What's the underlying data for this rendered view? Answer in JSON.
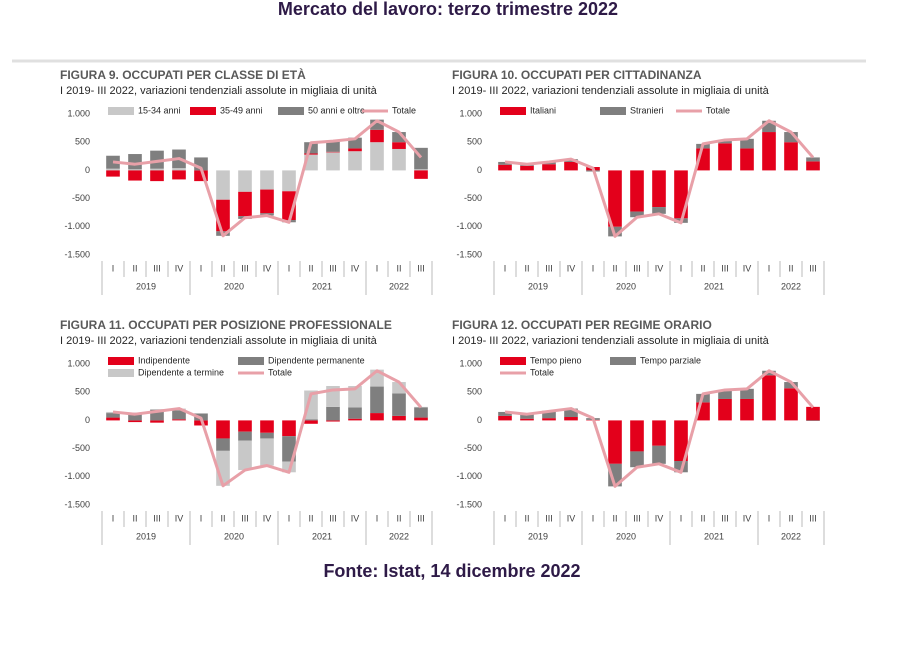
{
  "header": {
    "title": "Mercato del lavoro: terzo trimestre 2022"
  },
  "footer": {
    "source": "Fonte: Istat, 14 dicembre 2022"
  },
  "chart_data": [
    {
      "type": "bar",
      "stacked": true,
      "title": "FIGURA 9. OCCUPATI PER CLASSE DI ETÀ",
      "subtitle": "I 2019- III 2022, variazioni tendenziali assolute in migliaia di unità",
      "categories": [
        "I",
        "II",
        "III",
        "IV",
        "I",
        "II",
        "III",
        "IV",
        "I",
        "II",
        "III",
        "IV",
        "I",
        "II",
        "III"
      ],
      "years": [
        "2019",
        "2020",
        "2021",
        "2022"
      ],
      "ylim": [
        -1500,
        1000
      ],
      "yticks": [
        {
          "value": 1000,
          "label": "1.000"
        },
        500,
        0,
        -500,
        {
          "value": -1000,
          "label": "-1.000"
        },
        {
          "value": -1500,
          "label": "-1.500"
        }
      ],
      "series": [
        {
          "name": "15-34 anni",
          "color": "#c8c8c8",
          "values": [
            30,
            20,
            30,
            40,
            0,
            -520,
            -380,
            -340,
            -370,
            280,
            320,
            340,
            500,
            380,
            20
          ]
        },
        {
          "name": "35-49 anni",
          "color": "#e3001b",
          "values": [
            -110,
            -180,
            -190,
            -160,
            -190,
            -560,
            -430,
            -420,
            -510,
            20,
            10,
            50,
            220,
            120,
            -150
          ]
        },
        {
          "name": "50 anni e oltre",
          "color": "#7f7f7f",
          "values": [
            230,
            270,
            320,
            330,
            230,
            -80,
            -50,
            -40,
            -40,
            200,
            200,
            190,
            180,
            180,
            380
          ]
        },
        {
          "name": "Totale",
          "type": "line",
          "color": "#e8a0a8",
          "values": [
            150,
            110,
            160,
            210,
            40,
            -1160,
            -840,
            -800,
            -920,
            490,
            520,
            560,
            880,
            680,
            230
          ]
        }
      ]
    },
    {
      "type": "bar",
      "stacked": true,
      "title": "FIGURA 10. OCCUPATI PER CITTADINANZA",
      "subtitle": "I 2019- III 2022, variazioni tendenziali assolute in migliaia di unità",
      "categories": [
        "I",
        "II",
        "III",
        "IV",
        "I",
        "II",
        "III",
        "IV",
        "I",
        "II",
        "III",
        "IV",
        "I",
        "II",
        "III"
      ],
      "years": [
        "2019",
        "2020",
        "2021",
        "2022"
      ],
      "ylim": [
        -1500,
        1000
      ],
      "yticks": [
        {
          "value": 1000,
          "label": "1.000"
        },
        500,
        0,
        -500,
        {
          "value": -1000,
          "label": "-1.000"
        },
        {
          "value": -1500,
          "label": "-1.500"
        }
      ],
      "series": [
        {
          "name": "Italiani",
          "color": "#e3001b",
          "values": [
            100,
            80,
            110,
            150,
            60,
            -1000,
            -730,
            -650,
            -850,
            390,
            480,
            390,
            680,
            500,
            160
          ]
        },
        {
          "name": "Stranieri",
          "color": "#7f7f7f",
          "values": [
            50,
            30,
            40,
            50,
            -20,
            -170,
            -100,
            -120,
            -80,
            80,
            60,
            170,
            200,
            180,
            70
          ]
        },
        {
          "name": "Totale",
          "type": "line",
          "color": "#e8a0a8",
          "values": [
            150,
            110,
            150,
            200,
            40,
            -1170,
            -830,
            -770,
            -930,
            470,
            540,
            560,
            880,
            680,
            230
          ]
        }
      ]
    },
    {
      "type": "bar",
      "stacked": true,
      "title": "FIGURA 11. OCCUPATI PER POSIZIONE PROFESSIONALE",
      "subtitle": "I 2019- III 2022, variazioni tendenziali assolute in migliaia di unità",
      "categories": [
        "I",
        "II",
        "III",
        "IV",
        "I",
        "II",
        "III",
        "IV",
        "I",
        "II",
        "III",
        "IV",
        "I",
        "II",
        "III"
      ],
      "years": [
        "2019",
        "2020",
        "2021",
        "2022"
      ],
      "ylim": [
        -1500,
        1000
      ],
      "yticks": [
        {
          "value": 1000,
          "label": "1.000"
        },
        500,
        0,
        -500,
        {
          "value": -1000,
          "label": "-1.000"
        },
        {
          "value": -1500,
          "label": "-1.500"
        }
      ],
      "series": [
        {
          "name": "Indipendente",
          "color": "#e3001b",
          "values": [
            50,
            -30,
            -40,
            20,
            -90,
            -320,
            -200,
            -220,
            -280,
            -60,
            -20,
            30,
            130,
            80,
            50
          ]
        },
        {
          "name": "Dipendente permanente",
          "color": "#7f7f7f",
          "values": [
            80,
            130,
            190,
            160,
            120,
            -220,
            -160,
            -100,
            -450,
            20,
            240,
            200,
            470,
            400,
            180
          ]
        },
        {
          "name": "Dipendente a termine",
          "color": "#c8c8c8",
          "values": [
            20,
            10,
            10,
            30,
            10,
            -620,
            -520,
            -480,
            -190,
            510,
            370,
            380,
            300,
            200,
            10
          ]
        },
        {
          "name": "Totale",
          "type": "line",
          "color": "#e8a0a8",
          "values": [
            150,
            110,
            160,
            210,
            40,
            -1160,
            -880,
            -800,
            -920,
            470,
            540,
            560,
            880,
            680,
            230
          ]
        }
      ]
    },
    {
      "type": "bar",
      "stacked": true,
      "title": "FIGURA 12. OCCUPATI PER REGIME ORARIO",
      "subtitle": "I 2019- III 2022, variazioni tendenziali assolute in migliaia di unità",
      "categories": [
        "I",
        "II",
        "III",
        "IV",
        "I",
        "II",
        "III",
        "IV",
        "I",
        "II",
        "III",
        "IV",
        "I",
        "II",
        "III"
      ],
      "years": [
        "2019",
        "2020",
        "2021",
        "2022"
      ],
      "ylim": [
        -1500,
        1000
      ],
      "yticks": [
        {
          "value": 1000,
          "label": "1.000"
        },
        500,
        0,
        -500,
        {
          "value": -1000,
          "label": "-1.000"
        },
        {
          "value": -1500,
          "label": "-1.500"
        }
      ],
      "series": [
        {
          "name": "Tempo pieno",
          "color": "#e3001b",
          "values": [
            80,
            30,
            40,
            60,
            10,
            -770,
            -550,
            -450,
            -720,
            320,
            380,
            380,
            800,
            570,
            240
          ]
        },
        {
          "name": "Tempo parziale",
          "color": "#7f7f7f",
          "values": [
            70,
            80,
            130,
            150,
            30,
            -400,
            -280,
            -320,
            -200,
            150,
            160,
            180,
            80,
            110,
            -10
          ]
        },
        {
          "name": "Totale",
          "type": "line",
          "color": "#e8a0a8",
          "values": [
            150,
            110,
            160,
            210,
            40,
            -1170,
            -830,
            -770,
            -920,
            470,
            540,
            560,
            880,
            680,
            230
          ]
        }
      ]
    }
  ]
}
